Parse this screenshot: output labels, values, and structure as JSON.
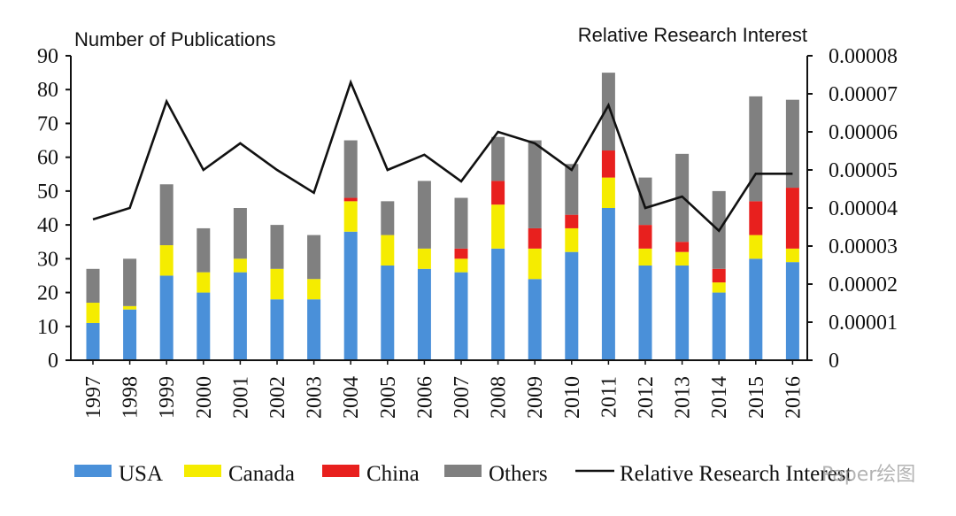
{
  "chart_data": {
    "type": "bar",
    "stacked": true,
    "categories": [
      "1997",
      "1998",
      "1999",
      "2000",
      "2001",
      "2002",
      "2003",
      "2004",
      "2005",
      "2006",
      "2007",
      "2008",
      "2009",
      "2010",
      "2011",
      "2012",
      "2013",
      "2014",
      "2015",
      "2016"
    ],
    "series": [
      {
        "name": "USA",
        "color": "#4a90d9",
        "values": [
          11,
          15,
          25,
          20,
          26,
          18,
          18,
          38,
          28,
          27,
          26,
          33,
          24,
          32,
          45,
          28,
          28,
          20,
          30,
          29
        ]
      },
      {
        "name": "Canada",
        "color": "#f5ec00",
        "values": [
          6,
          1,
          9,
          6,
          4,
          9,
          6,
          9,
          9,
          6,
          4,
          13,
          9,
          7,
          9,
          5,
          4,
          3,
          7,
          4
        ]
      },
      {
        "name": "China",
        "color": "#e8201e",
        "values": [
          0,
          0,
          0,
          0,
          0,
          0,
          0,
          1,
          0,
          0,
          3,
          7,
          6,
          4,
          8,
          7,
          3,
          4,
          10,
          18
        ]
      },
      {
        "name": "Others",
        "color": "#808080",
        "values": [
          10,
          14,
          18,
          13,
          15,
          13,
          13,
          17,
          10,
          20,
          15,
          13,
          26,
          15,
          23,
          14,
          26,
          23,
          31,
          26
        ]
      }
    ],
    "line_series": {
      "name": "Relative Research Interest",
      "color": "#111111",
      "axis": "right",
      "values": [
        3.7e-05,
        4e-05,
        6.8e-05,
        5e-05,
        5.7e-05,
        5e-05,
        4.4e-05,
        7.3e-05,
        5e-05,
        5.4e-05,
        4.7e-05,
        6e-05,
        5.7e-05,
        5e-05,
        6.7e-05,
        4e-05,
        4.3e-05,
        3.4e-05,
        4.9e-05,
        4.9e-05
      ]
    },
    "ylabel_left": "Number of Publications",
    "ylabel_right": "Relative Research Interest",
    "ylim_left": [
      0,
      90
    ],
    "ylim_right": [
      0,
      8e-05
    ],
    "yticks_left": [
      "0",
      "10",
      "20",
      "30",
      "40",
      "50",
      "60",
      "70",
      "80",
      "90"
    ],
    "yticks_right": [
      "0",
      "0.00001",
      "0.00002",
      "0.00003",
      "0.00004",
      "0.00005",
      "0.00006",
      "0.00007",
      "0.00008"
    ],
    "legend_position": "bottom",
    "grid": false
  },
  "watermark": "Paper绘图"
}
